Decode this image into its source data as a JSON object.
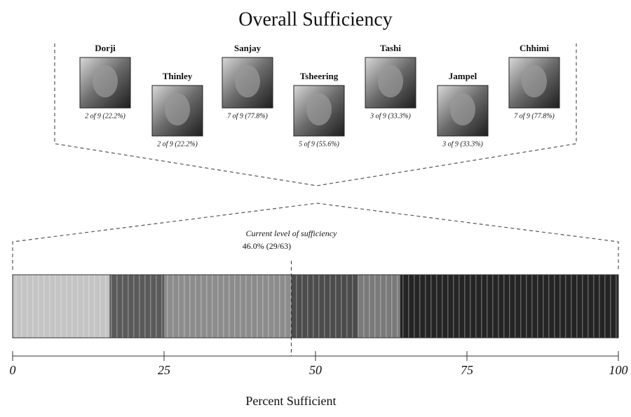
{
  "chart_data": {
    "type": "segmented-bar",
    "title": "Overall Sufficiency",
    "x_label": "Percent Sufficient",
    "xlim": [
      0,
      100
    ],
    "xticks": [
      0,
      25,
      50,
      75,
      100
    ],
    "segments": [
      {
        "value": 16,
        "color": "#c4c4c4"
      },
      {
        "value": 9,
        "color": "#5a5a5a"
      },
      {
        "value": 21,
        "color": "#8c8c8c"
      },
      {
        "value": 11,
        "color": "#4c4c4c"
      },
      {
        "value": 7,
        "color": "#7a7a7a"
      },
      {
        "value": 36,
        "color": "#242424"
      }
    ],
    "marker": {
      "title": "Current level of sufficiency",
      "value": 46,
      "label": "46.0% (29/63)"
    },
    "people": [
      {
        "name": "Dorji",
        "label": "2 of 9 (22.2%)"
      },
      {
        "name": "Thinley",
        "label": "2 of 9 (22.2%)"
      },
      {
        "name": "Sanjay",
        "label": "7 of 9 (77.8%)"
      },
      {
        "name": "Tsheering",
        "label": "5 of 9 (55.6%)"
      },
      {
        "name": "Tashi",
        "label": "3 of 9 (33.3%)"
      },
      {
        "name": "Jampel",
        "label": "3 of 9 (33.3%)"
      },
      {
        "name": "Chhimi",
        "label": "7 of 9 (77.8%)"
      }
    ]
  }
}
